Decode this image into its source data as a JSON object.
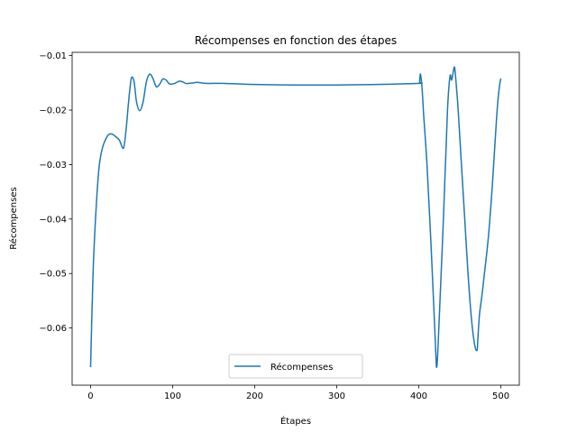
{
  "chart_data": {
    "type": "line",
    "title": "Récompenses en fonction des étapes",
    "xlabel": "Étapes",
    "ylabel": "Récompenses",
    "xlim": [
      -22.5,
      522.5
    ],
    "ylim": [
      -0.0705,
      -0.0094
    ],
    "xticks": [
      0,
      100,
      200,
      300,
      400,
      500
    ],
    "yticks": [
      -0.06,
      -0.05,
      -0.04,
      -0.03,
      -0.02,
      -0.01
    ],
    "xtick_labels": [
      "0",
      "100",
      "200",
      "300",
      "400",
      "500"
    ],
    "ytick_labels": [
      "−0.06",
      "−0.05",
      "−0.04",
      "−0.03",
      "−0.02",
      "−0.01"
    ],
    "grid": false,
    "legend_position": "lower center",
    "series": [
      {
        "name": "Récompenses",
        "color": "#1f77b4",
        "x": [
          0,
          3,
          6,
          10,
          14,
          18,
          22,
          26,
          30,
          35,
          40,
          43,
          46,
          48,
          50,
          53,
          56,
          60,
          64,
          68,
          72,
          76,
          80,
          84,
          88,
          92,
          96,
          100,
          104,
          108,
          112,
          116,
          120,
          125,
          130,
          135,
          140,
          150,
          160,
          180,
          200,
          250,
          300,
          350,
          400,
          401,
          402,
          404,
          406,
          410,
          415,
          420,
          422,
          425,
          430,
          435,
          438,
          440,
          442,
          443,
          444,
          446,
          448,
          452,
          456,
          460,
          464,
          468,
          471,
          472,
          474,
          477,
          480,
          485,
          490,
          495,
          498,
          500
        ],
        "y": [
          -0.0672,
          -0.05,
          -0.04,
          -0.031,
          -0.0272,
          -0.0255,
          -0.0245,
          -0.0244,
          -0.0248,
          -0.0255,
          -0.027,
          -0.024,
          -0.019,
          -0.016,
          -0.014,
          -0.0148,
          -0.0185,
          -0.0201,
          -0.0185,
          -0.0148,
          -0.0134,
          -0.0142,
          -0.0157,
          -0.0153,
          -0.0143,
          -0.0145,
          -0.0152,
          -0.0152,
          -0.015,
          -0.0147,
          -0.0148,
          -0.0151,
          -0.0151,
          -0.015,
          -0.0149,
          -0.015,
          -0.0151,
          -0.0151,
          -0.0151,
          -0.0152,
          -0.0153,
          -0.0154,
          -0.0154,
          -0.0153,
          -0.0151,
          -0.0148,
          -0.0134,
          -0.016,
          -0.021,
          -0.03,
          -0.045,
          -0.062,
          -0.0671,
          -0.058,
          -0.04,
          -0.02,
          -0.0138,
          -0.0145,
          -0.013,
          -0.0122,
          -0.0125,
          -0.016,
          -0.02,
          -0.03,
          -0.04,
          -0.05,
          -0.058,
          -0.063,
          -0.0641,
          -0.062,
          -0.0575,
          -0.054,
          -0.05,
          -0.043,
          -0.033,
          -0.021,
          -0.016,
          -0.0142
        ]
      }
    ]
  }
}
